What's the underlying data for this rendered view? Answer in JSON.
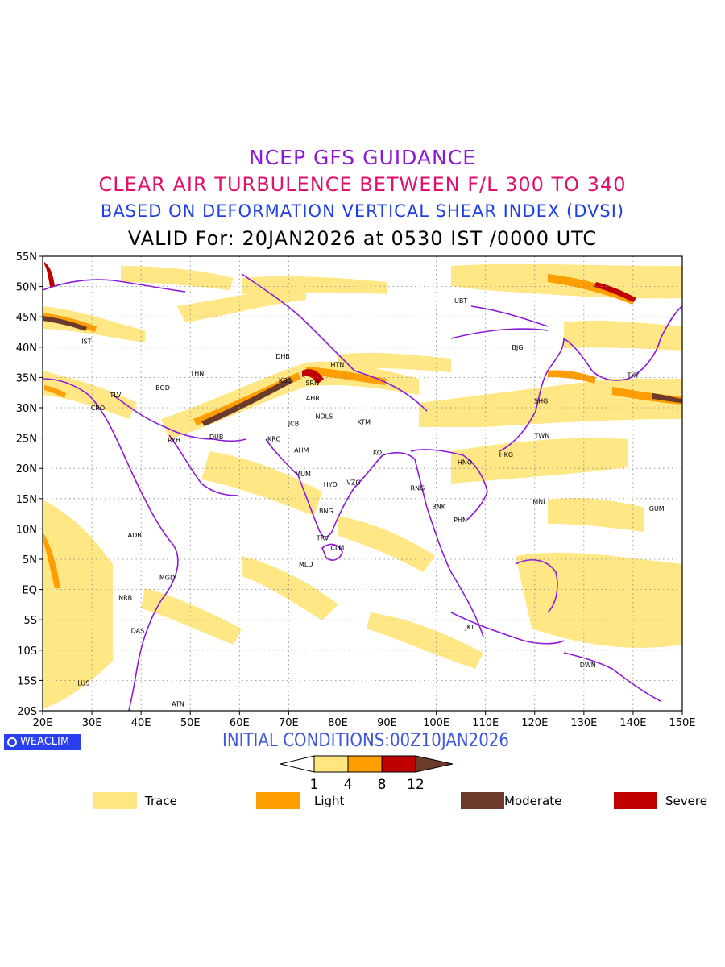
{
  "header": {
    "line1": "NCEP GFS GUIDANCE",
    "line2": "CLEAR AIR TURBULENCE BETWEEN F/L 300 TO 340",
    "line3": "BASED ON DEFORMATION VERTICAL SHEAR INDEX (DVSI)",
    "line4": "VALID For: 20JAN2026 at 0530 IST /0000 UTC"
  },
  "map": {
    "lon_range": [
      20,
      150
    ],
    "lat_range": [
      -20,
      55
    ],
    "lon_ticks": [
      "20E",
      "30E",
      "40E",
      "50E",
      "60E",
      "70E",
      "80E",
      "90E",
      "100E",
      "110E",
      "120E",
      "130E",
      "140E",
      "150E"
    ],
    "lat_ticks": [
      "55N",
      "50N",
      "45N",
      "40N",
      "35N",
      "30N",
      "25N",
      "20N",
      "15N",
      "10N",
      "5N",
      "EQ",
      "5S",
      "10S",
      "15S",
      "20S"
    ],
    "grid": true,
    "stations": [
      {
        "code": "UBT",
        "lon": 105,
        "lat": 47.7
      },
      {
        "code": "BJG",
        "lon": 116.5,
        "lat": 40
      },
      {
        "code": "TKY",
        "lon": 140,
        "lat": 35.4
      },
      {
        "code": "SHG",
        "lon": 121.3,
        "lat": 31.1
      },
      {
        "code": "TWN",
        "lon": 121.5,
        "lat": 25.4
      },
      {
        "code": "HKG",
        "lon": 114.2,
        "lat": 22.3
      },
      {
        "code": "HNO",
        "lon": 105.8,
        "lat": 21
      },
      {
        "code": "MNL",
        "lon": 121,
        "lat": 14.5
      },
      {
        "code": "GUM",
        "lon": 144.8,
        "lat": 13.4
      },
      {
        "code": "BNK",
        "lon": 100.5,
        "lat": 13.7
      },
      {
        "code": "PHN",
        "lon": 104.9,
        "lat": 11.5
      },
      {
        "code": "RNG",
        "lon": 96.2,
        "lat": 16.8
      },
      {
        "code": "JKT",
        "lon": 106.8,
        "lat": -6.2
      },
      {
        "code": "DWN",
        "lon": 130.8,
        "lat": -12.4
      },
      {
        "code": "IST",
        "lon": 28.9,
        "lat": 41
      },
      {
        "code": "TLV",
        "lon": 34.8,
        "lat": 32.1
      },
      {
        "code": "CRO",
        "lon": 31.2,
        "lat": 30
      },
      {
        "code": "BGD",
        "lon": 44.4,
        "lat": 33.3
      },
      {
        "code": "THN",
        "lon": 51.4,
        "lat": 35.7
      },
      {
        "code": "RYH",
        "lon": 46.7,
        "lat": 24.7
      },
      {
        "code": "DUB",
        "lon": 55.3,
        "lat": 25.2
      },
      {
        "code": "DHB",
        "lon": 68.8,
        "lat": 38.5
      },
      {
        "code": "HTN",
        "lon": 79.9,
        "lat": 37.1
      },
      {
        "code": "KBL",
        "lon": 69.2,
        "lat": 34.5
      },
      {
        "code": "SRN",
        "lon": 74.8,
        "lat": 34.1
      },
      {
        "code": "AHR",
        "lon": 74.9,
        "lat": 31.6
      },
      {
        "code": "JCB",
        "lon": 71,
        "lat": 27.4
      },
      {
        "code": "NDLS",
        "lon": 77.2,
        "lat": 28.6
      },
      {
        "code": "KTM",
        "lon": 85.3,
        "lat": 27.7
      },
      {
        "code": "KRC",
        "lon": 67,
        "lat": 24.9
      },
      {
        "code": "AHM",
        "lon": 72.6,
        "lat": 23
      },
      {
        "code": "KOL",
        "lon": 88.4,
        "lat": 22.6
      },
      {
        "code": "MUM",
        "lon": 72.9,
        "lat": 19.1
      },
      {
        "code": "HYD",
        "lon": 78.5,
        "lat": 17.4
      },
      {
        "code": "VZG",
        "lon": 83.2,
        "lat": 17.7
      },
      {
        "code": "BNG",
        "lon": 77.6,
        "lat": 13
      },
      {
        "code": "TRV",
        "lon": 76.9,
        "lat": 8.5
      },
      {
        "code": "CLM",
        "lon": 79.9,
        "lat": 6.9
      },
      {
        "code": "MLD",
        "lon": 73.5,
        "lat": 4.2
      },
      {
        "code": "ADB",
        "lon": 38.7,
        "lat": 9
      },
      {
        "code": "MGD",
        "lon": 45.3,
        "lat": 2
      },
      {
        "code": "NRB",
        "lon": 36.8,
        "lat": -1.3
      },
      {
        "code": "DAS",
        "lon": 39.3,
        "lat": -6.8
      },
      {
        "code": "LUS",
        "lon": 28.3,
        "lat": -15.4
      },
      {
        "code": "ATN",
        "lon": 47.5,
        "lat": -18.9
      }
    ]
  },
  "footer": {
    "initial": "INITIAL CONDITIONS:00Z10JAN2026",
    "brand": "WEACLIM",
    "scale_labels": [
      "1",
      "4",
      "8",
      "12"
    ],
    "colors": {
      "trace": "#ffe680",
      "light": "#ff9e00",
      "moderate": "#6b3a2a",
      "severe": "#c00000",
      "boundary": "#8c1ad6",
      "frame": "#000000"
    },
    "legend": [
      {
        "label": "Trace",
        "color": "#ffe680"
      },
      {
        "label": "Light",
        "color": "#ff9e00"
      },
      {
        "label": "Moderate",
        "color": "#6b3a2a"
      },
      {
        "label": "Severe",
        "color": "#c00000"
      }
    ]
  }
}
